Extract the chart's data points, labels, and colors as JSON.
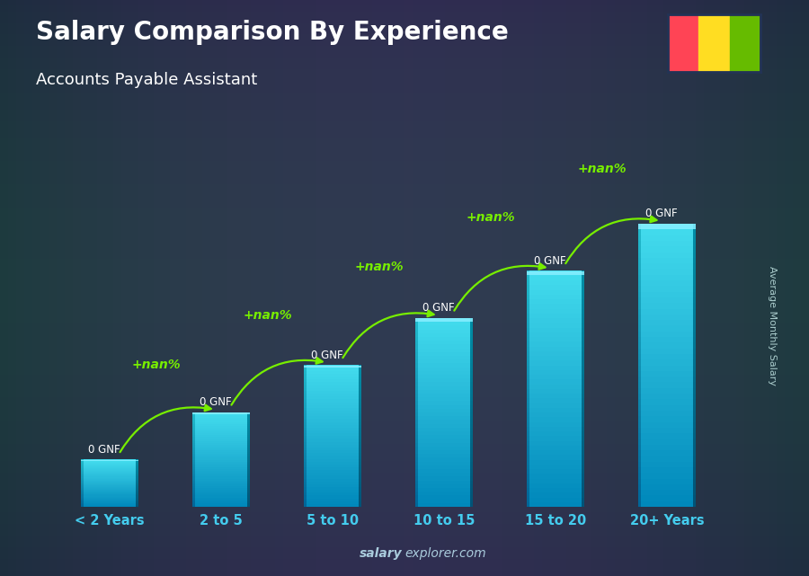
{
  "title": "Salary Comparison By Experience",
  "subtitle": "Accounts Payable Assistant",
  "categories": [
    "< 2 Years",
    "2 to 5",
    "5 to 10",
    "10 to 15",
    "15 to 20",
    "20+ Years"
  ],
  "values": [
    1,
    2,
    3,
    4,
    5,
    6
  ],
  "bar_labels": [
    "0 GNF",
    "0 GNF",
    "0 GNF",
    "0 GNF",
    "0 GNF",
    "0 GNF"
  ],
  "pct_labels": [
    "+nan%",
    "+nan%",
    "+nan%",
    "+nan%",
    "+nan%"
  ],
  "ylabel": "Average Monthly Salary",
  "watermark_bold": "salary",
  "watermark_regular": "explorer.com",
  "bg_color": "#1c2b3a",
  "title_color": "#ffffff",
  "subtitle_color": "#ffffff",
  "pct_color": "#77ee00",
  "bar_label_color": "#ffffff",
  "xlabel_color": "#44ccee",
  "flag_red": "#ff4455",
  "flag_yellow": "#ffdd22",
  "flag_green": "#66bb00",
  "watermark_color": "#aaccdd",
  "bar_main": "#29b8d8",
  "bar_light": "#55ddee",
  "bar_dark": "#0077aa",
  "bar_side": "#006699",
  "bar_top": "#66eeff"
}
